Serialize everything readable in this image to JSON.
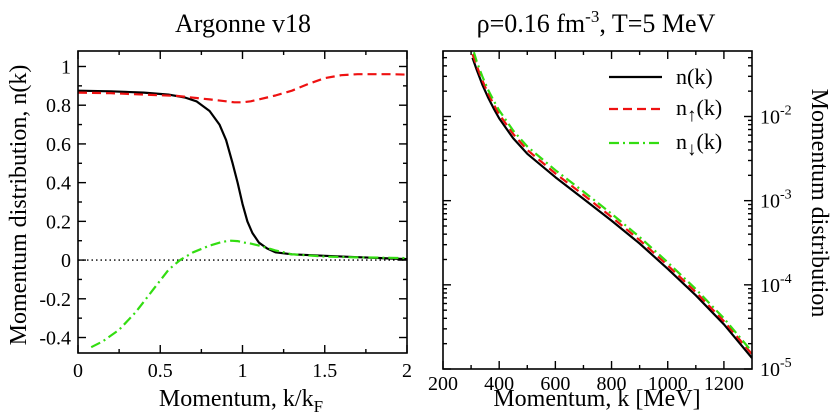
{
  "chart_data": [
    {
      "type": "line",
      "title": "Argonne v18",
      "xlabel": "Momentum, k/k",
      "xlabel_sub": "F",
      "ylabel": "Momentum distribution, n(k)",
      "xlim": [
        0,
        2
      ],
      "ylim": [
        -0.48,
        1.08
      ],
      "xticks": [
        0,
        0.5,
        1,
        1.5,
        2
      ],
      "xtick_labels": [
        "0",
        "0.5",
        "1",
        "1.5",
        "2"
      ],
      "yticks": [
        -0.4,
        -0.2,
        0,
        0.2,
        0.4,
        0.6,
        0.8,
        1
      ],
      "ytick_labels": [
        "-0.4",
        "-0.2",
        "0",
        "0.2",
        "0.4",
        "0.6",
        "0.8",
        "1"
      ],
      "reference_line": {
        "y": 0,
        "style": "dotted"
      },
      "series": [
        {
          "name": "n(k)",
          "color": "#000000",
          "dash": "solid",
          "x": [
            0,
            0.2,
            0.4,
            0.55,
            0.65,
            0.72,
            0.8,
            0.86,
            0.9,
            0.94,
            0.97,
            1.0,
            1.03,
            1.06,
            1.1,
            1.15,
            1.2,
            1.3,
            1.5,
            1.7,
            2.0
          ],
          "y": [
            0.875,
            0.872,
            0.865,
            0.855,
            0.84,
            0.82,
            0.77,
            0.7,
            0.62,
            0.5,
            0.4,
            0.29,
            0.2,
            0.14,
            0.09,
            0.06,
            0.04,
            0.03,
            0.022,
            0.015,
            0.005
          ]
        },
        {
          "name": "n↑(k)",
          "color": "#ee1111",
          "dash": "dashed",
          "x": [
            0,
            0.2,
            0.4,
            0.6,
            0.8,
            0.9,
            0.95,
            1.0,
            1.05,
            1.1,
            1.2,
            1.3,
            1.4,
            1.5,
            1.6,
            1.7,
            1.8,
            1.9,
            2.0
          ],
          "y": [
            0.865,
            0.862,
            0.855,
            0.848,
            0.83,
            0.82,
            0.815,
            0.815,
            0.82,
            0.83,
            0.85,
            0.875,
            0.91,
            0.94,
            0.955,
            0.96,
            0.96,
            0.96,
            0.958
          ]
        },
        {
          "name": "n↓(k)",
          "color": "#33dd11",
          "dash": "dashdot",
          "x": [
            0.08,
            0.15,
            0.25,
            0.35,
            0.45,
            0.55,
            0.62,
            0.7,
            0.8,
            0.88,
            0.93,
            0.97,
            1.0,
            1.05,
            1.1,
            1.2,
            1.3,
            1.5,
            1.7,
            1.9,
            2.0
          ],
          "y": [
            -0.45,
            -0.42,
            -0.36,
            -0.27,
            -0.16,
            -0.05,
            0.0,
            0.04,
            0.075,
            0.095,
            0.1,
            0.098,
            0.092,
            0.085,
            0.075,
            0.05,
            0.03,
            0.018,
            0.014,
            0.012,
            0.01
          ]
        }
      ]
    },
    {
      "type": "line",
      "title": "ρ=0.16 fm",
      "title_sup": "-3",
      "title_tail": ", T=5 MeV",
      "xlabel": "Momentum, k [MeV]",
      "ylabel": "Momentum distribution",
      "yscale": "log",
      "xlim": [
        200,
        1300
      ],
      "ylim": [
        1e-05,
        0.06
      ],
      "xticks": [
        200,
        400,
        600,
        800,
        1000,
        1200
      ],
      "xtick_labels": [
        "200",
        "400",
        "600",
        "800",
        "1000",
        "1200"
      ],
      "yticks": [
        1e-05,
        0.0001,
        0.001,
        0.01
      ],
      "ytick_labels": [
        {
          "base": "10",
          "exp": "-5"
        },
        {
          "base": "10",
          "exp": "-4"
        },
        {
          "base": "10",
          "exp": "-3"
        },
        {
          "base": "10",
          "exp": "-2"
        }
      ],
      "legend": {
        "position": "top-right"
      },
      "legend_labels": [
        {
          "main": "n(k)",
          "sub": ""
        },
        {
          "main": "n",
          "sub": "↑",
          "tail": "(k)"
        },
        {
          "main": "n",
          "sub": "↓",
          "tail": "(k)"
        }
      ],
      "series": [
        {
          "name": "n(k)",
          "color": "#000000",
          "dash": "solid",
          "x": [
            305,
            320,
            340,
            360,
            380,
            400,
            450,
            500,
            600,
            700,
            800,
            900,
            1000,
            1100,
            1200,
            1300
          ],
          "y": [
            0.05,
            0.036,
            0.024,
            0.017,
            0.0125,
            0.0095,
            0.0055,
            0.0036,
            0.0019,
            0.00105,
            0.00058,
            0.00031,
            0.000155,
            7.5e-05,
            3.4e-05,
            1.35e-05
          ]
        },
        {
          "name": "n↑(k)",
          "color": "#ee1111",
          "dash": "dashed",
          "x": [
            305,
            320,
            340,
            360,
            380,
            400,
            450,
            500,
            600,
            700,
            800,
            900,
            1000,
            1100,
            1200,
            1300
          ],
          "y": [
            0.055,
            0.04,
            0.027,
            0.019,
            0.014,
            0.0106,
            0.0062,
            0.004,
            0.0021,
            0.00117,
            0.00064,
            0.00034,
            0.00017,
            8.2e-05,
            3.7e-05,
            1.5e-05
          ]
        },
        {
          "name": "n↓(k)",
          "color": "#33dd11",
          "dash": "dashdot",
          "x": [
            310,
            320,
            340,
            360,
            380,
            400,
            450,
            500,
            600,
            700,
            800,
            900,
            1000,
            1100,
            1200,
            1300
          ],
          "y": [
            0.058,
            0.045,
            0.03,
            0.021,
            0.0155,
            0.0118,
            0.0068,
            0.0044,
            0.0023,
            0.00128,
            0.0007,
            0.00037,
            0.000185,
            8.9e-05,
            4e-05,
            1.6e-05
          ]
        }
      ]
    }
  ]
}
